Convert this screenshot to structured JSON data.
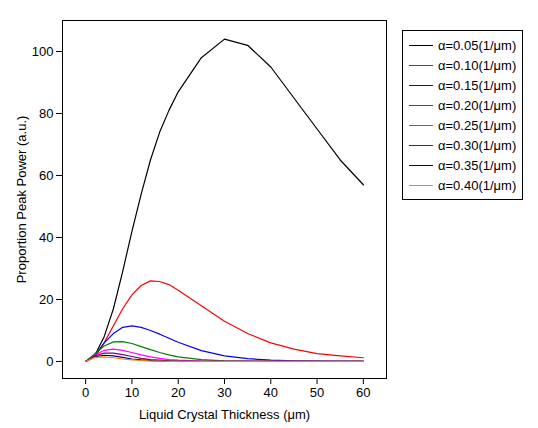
{
  "chart_data": {
    "type": "line",
    "x_label": "Liquid Crystal Thickness (μm)",
    "y_label": "Proportion Peak Power (a.u.)",
    "x": [
      0,
      2,
      4,
      6,
      8,
      10,
      12,
      14,
      16,
      18,
      20,
      25,
      30,
      35,
      40,
      45,
      50,
      55,
      60
    ],
    "series": [
      {
        "name": "α=0.05(1/μm)",
        "color": "#000000",
        "values": [
          0,
          2,
          8,
          17,
          29,
          42,
          54,
          65,
          74,
          81,
          87,
          98,
          104,
          102,
          95,
          85,
          75,
          65,
          57
        ]
      },
      {
        "name": "α=0.10(1/μm)",
        "color": "#ff0000",
        "values": [
          0,
          1.5,
          6,
          11.5,
          17,
          21.5,
          24.5,
          26,
          25.8,
          24.8,
          23,
          18,
          13,
          9,
          6,
          4,
          2.5,
          1.8,
          1.2
        ]
      },
      {
        "name": "α=0.15(1/μm)",
        "color": "#0000ff",
        "values": [
          0,
          2,
          6,
          9,
          11,
          11.5,
          11,
          10,
          8.8,
          7.5,
          6.2,
          3.5,
          1.8,
          0.9,
          0.4,
          0.2,
          0.1,
          0,
          0
        ]
      },
      {
        "name": "α=0.20(1/μm)",
        "color": "#008000",
        "values": [
          0,
          2.5,
          5,
          6.3,
          6.4,
          5.8,
          4.8,
          3.8,
          2.9,
          2.1,
          1.5,
          0.6,
          0.2,
          0.1,
          0,
          0,
          0,
          0,
          0
        ]
      },
      {
        "name": "α=0.25(1/μm)",
        "color": "#ff00ff",
        "values": [
          0,
          2,
          3.6,
          4,
          3.6,
          2.9,
          2.1,
          1.5,
          1,
          0.6,
          0.4,
          0.1,
          0,
          0,
          0,
          0,
          0,
          0,
          0
        ]
      },
      {
        "name": "α=0.30(1/μm)",
        "color": "#800080",
        "values": [
          0,
          1.8,
          2.7,
          2.7,
          2.2,
          1.6,
          1,
          0.6,
          0.4,
          0.2,
          0.1,
          0,
          0,
          0,
          0,
          0,
          0,
          0,
          0
        ]
      },
      {
        "name": "α=0.35(1/μm)",
        "color": "#000080",
        "values": [
          0,
          1.5,
          2,
          1.8,
          1.3,
          0.8,
          0.5,
          0.3,
          0.1,
          0.1,
          0,
          0,
          0,
          0,
          0,
          0,
          0,
          0,
          0
        ]
      },
      {
        "name": "α=0.40(1/μm)",
        "color": "#ff8000",
        "values": [
          0,
          1.3,
          1.5,
          1.2,
          0.8,
          0.5,
          0.3,
          0.1,
          0.1,
          0,
          0,
          0,
          0,
          0,
          0,
          0,
          0,
          0,
          0
        ]
      }
    ],
    "xlim": [
      -5,
      65
    ],
    "ylim": [
      -5.5,
      110
    ],
    "xticks": [
      0,
      10,
      20,
      30,
      40,
      50,
      60
    ],
    "yticks": [
      0,
      20,
      40,
      60,
      80,
      100
    ],
    "grid": false,
    "legend": "right"
  }
}
